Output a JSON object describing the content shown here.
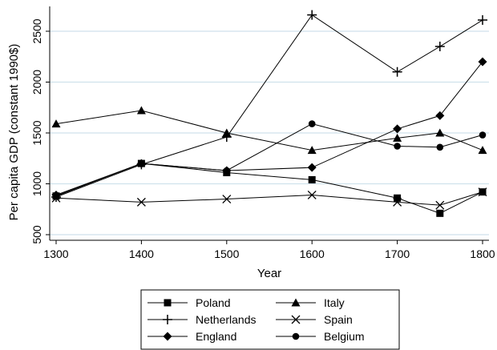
{
  "chart_data": {
    "type": "line",
    "xlabel": "Year",
    "ylabel": "Per capita GDP (constant 1990$)",
    "xlim": [
      1300,
      1800
    ],
    "ylim": [
      500,
      2500
    ],
    "xticks": [
      1300,
      1400,
      1500,
      1600,
      1700,
      1800
    ],
    "yticks": [
      500,
      1000,
      1500,
      2000,
      2500
    ],
    "grid": "horizontal",
    "legend_position": "bottom",
    "x": [
      1300,
      1400,
      1500,
      1600,
      1700,
      1750,
      1800
    ],
    "series": [
      {
        "name": "Poland",
        "marker": "square",
        "values": [
          880,
          1200,
          1110,
          1040,
          860,
          710,
          920
        ]
      },
      {
        "name": "Italy",
        "marker": "triangle",
        "values": [
          1590,
          1720,
          1500,
          1330,
          1450,
          1500,
          1330
        ]
      },
      {
        "name": "Netherlands",
        "marker": "plus",
        "values": [
          870,
          1190,
          1460,
          2660,
          2100,
          2350,
          2610
        ]
      },
      {
        "name": "Spain",
        "marker": "x",
        "values": [
          860,
          820,
          850,
          890,
          820,
          790,
          920
        ]
      },
      {
        "name": "England",
        "marker": "diamond",
        "values": [
          890,
          1200,
          1130,
          1160,
          1540,
          1670,
          2200
        ]
      },
      {
        "name": "Belgium",
        "marker": "circle",
        "values": [
          880,
          1200,
          1130,
          1590,
          1370,
          1360,
          1480
        ]
      }
    ],
    "colors": {
      "line": "#000000",
      "grid": "#cfe1ec",
      "axis": "#000000"
    }
  }
}
